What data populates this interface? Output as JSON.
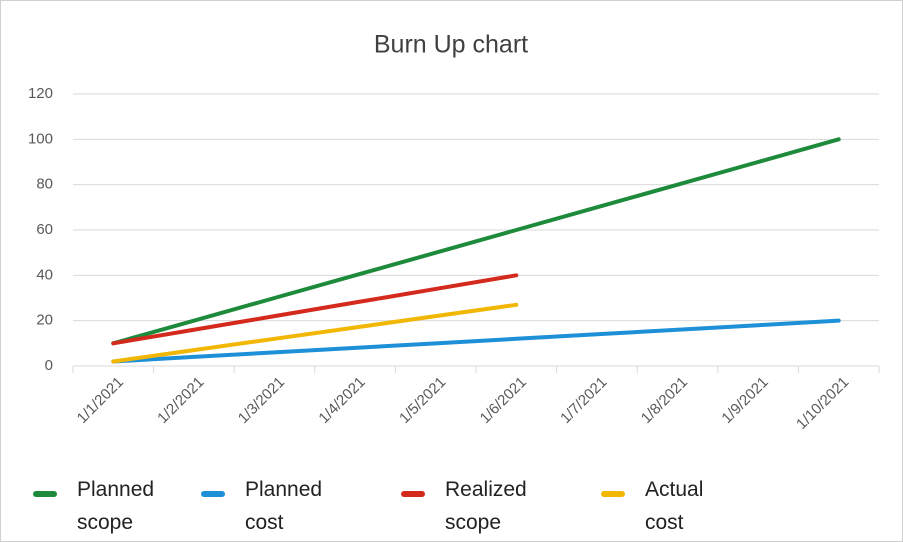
{
  "chart_data": {
    "type": "line",
    "title": "Burn Up chart",
    "categories": [
      "1/1/2021",
      "1/2/2021",
      "1/3/2021",
      "1/4/2021",
      "1/5/2021",
      "1/6/2021",
      "1/7/2021",
      "1/8/2021",
      "1/9/2021",
      "1/10/2021"
    ],
    "series": [
      {
        "name": "Planned scope",
        "color": "#1e8a3c",
        "values": [
          10,
          20,
          30,
          40,
          50,
          60,
          70,
          80,
          90,
          100
        ]
      },
      {
        "name": "Planned cost",
        "color": "#1e90d8",
        "values": [
          2,
          4,
          6,
          8,
          10,
          12,
          14,
          16,
          18,
          20
        ]
      },
      {
        "name": "Realized scope",
        "color": "#d42a1e",
        "values": [
          10,
          16,
          22,
          28,
          34,
          40,
          null,
          null,
          null,
          null
        ]
      },
      {
        "name": "Actual cost",
        "color": "#f2b705",
        "values": [
          2,
          7,
          12,
          17,
          22,
          27,
          null,
          null,
          null,
          null
        ]
      }
    ],
    "ylim": [
      0,
      120
    ],
    "yticks": [
      0,
      20,
      40,
      60,
      80,
      100,
      120
    ],
    "grid": true,
    "legend": "bottom"
  }
}
